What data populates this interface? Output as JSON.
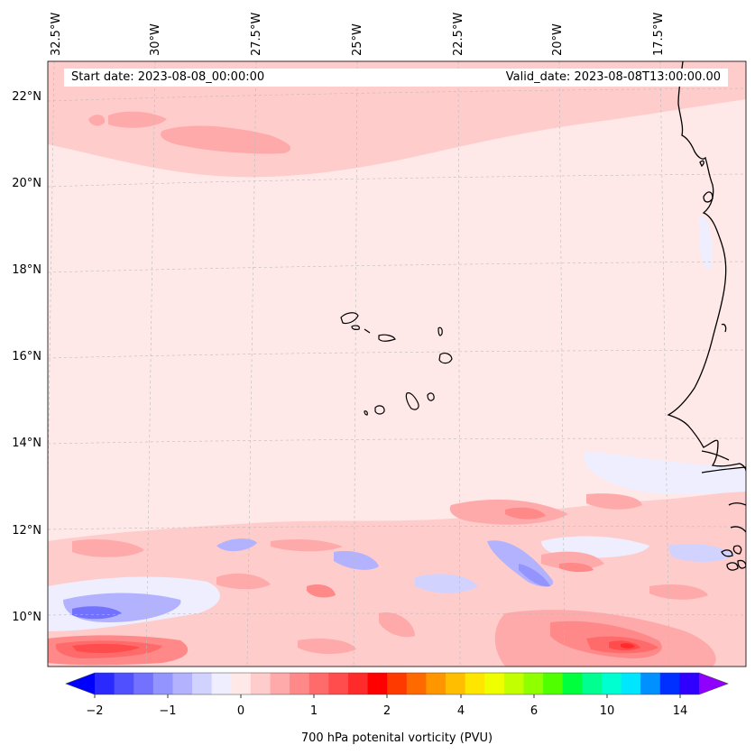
{
  "header": {
    "start_date": "Start date: 2023-08-08_00:00:00",
    "valid_date": "Valid_date: 2023-08-08T13:00:00.00"
  },
  "map": {
    "lon_labels": [
      "32.5°W",
      "30°W",
      "27.5°W",
      "25°W",
      "22.5°W",
      "20°W",
      "17.5°W"
    ],
    "lat_labels": [
      "22°N",
      "20°N",
      "18°N",
      "16°N",
      "14°N",
      "12°N",
      "10°N"
    ],
    "background_color": "#ffe8e8"
  },
  "colorbar": {
    "label": "700 hPa potenital vorticity (PVU)",
    "tick_labels": [
      "−2",
      "−1",
      "0",
      "1",
      "2",
      "4",
      "6",
      "10",
      "14"
    ],
    "colors": [
      "#0000ff",
      "#2a2aff",
      "#5050ff",
      "#7272ff",
      "#9494ff",
      "#b2b2ff",
      "#d2d2ff",
      "#eeeeff",
      "#ffe8e8",
      "#ffcccc",
      "#ffaaaa",
      "#ff8888",
      "#ff6a6a",
      "#ff4c4c",
      "#ff2a2a",
      "#ff0000",
      "#ff3a00",
      "#ff6a00",
      "#ff9600",
      "#ffbe00",
      "#ffe600",
      "#f0ff00",
      "#c2ff00",
      "#90ff00",
      "#50ff00",
      "#00ff3c",
      "#00ff90",
      "#00ffd0",
      "#00e6ff",
      "#0090ff",
      "#0030ff",
      "#3000ff",
      "#9000ff"
    ]
  }
}
